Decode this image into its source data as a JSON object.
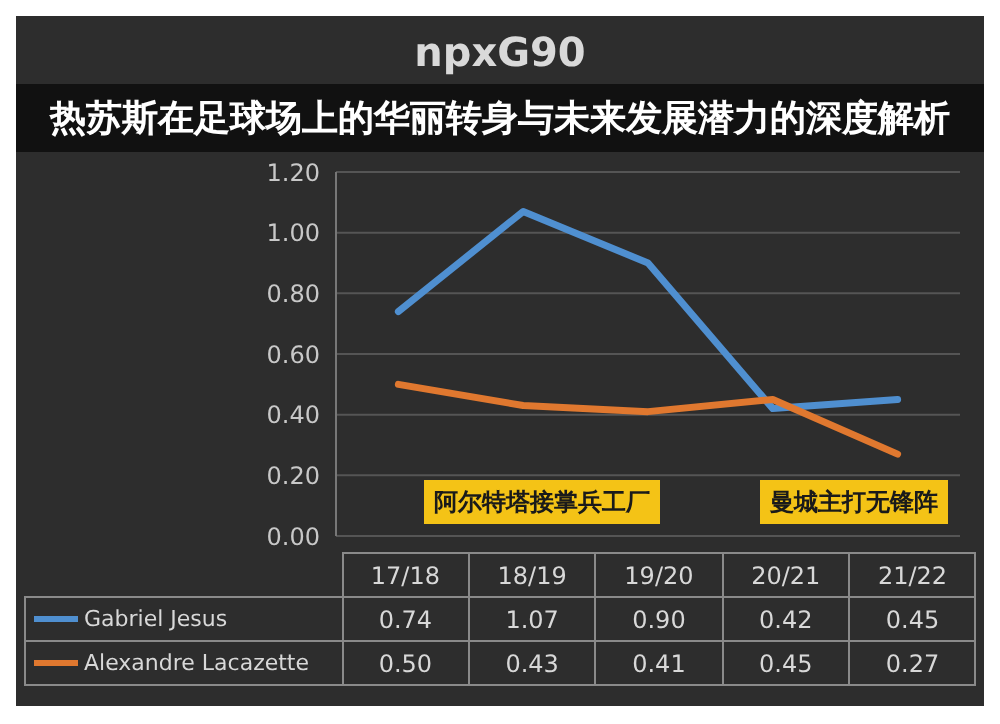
{
  "chart_data": {
    "type": "line",
    "title": "npxG90",
    "subtitle": "热苏斯在足球场上的华丽转身与未来发展潜力的深度解析",
    "categories": [
      "17/18",
      "18/19",
      "19/20",
      "20/21",
      "21/22"
    ],
    "series": [
      {
        "name": "Gabriel Jesus",
        "color": "#4f8fd0",
        "values": [
          0.74,
          1.07,
          0.9,
          0.42,
          0.45
        ],
        "value_labels": [
          "0.74",
          "1.07",
          "0.90",
          "0.42",
          "0.45"
        ]
      },
      {
        "name": "Alexandre Lacazette",
        "color": "#e0782f",
        "values": [
          0.5,
          0.43,
          0.41,
          0.45,
          0.27
        ],
        "value_labels": [
          "0.50",
          "0.43",
          "0.41",
          "0.45",
          "0.27"
        ]
      }
    ],
    "ylim": [
      0,
      1.2
    ],
    "yticks": [
      {
        "value": 0,
        "label": "0.00"
      },
      {
        "value": 0.2,
        "label": "0.20"
      },
      {
        "value": 0.4,
        "label": "0.40"
      },
      {
        "value": 0.6,
        "label": "0.60"
      },
      {
        "value": 0.8,
        "label": "0.80"
      },
      {
        "value": 1,
        "label": "1.00"
      },
      {
        "value": 1.2,
        "label": "1.20"
      }
    ],
    "annotations": [
      "阿尔特塔接掌兵工厂",
      "曼城主打无锋阵"
    ],
    "grid": "y",
    "legend": "bottom",
    "marker": "none",
    "line_style": "solid"
  }
}
